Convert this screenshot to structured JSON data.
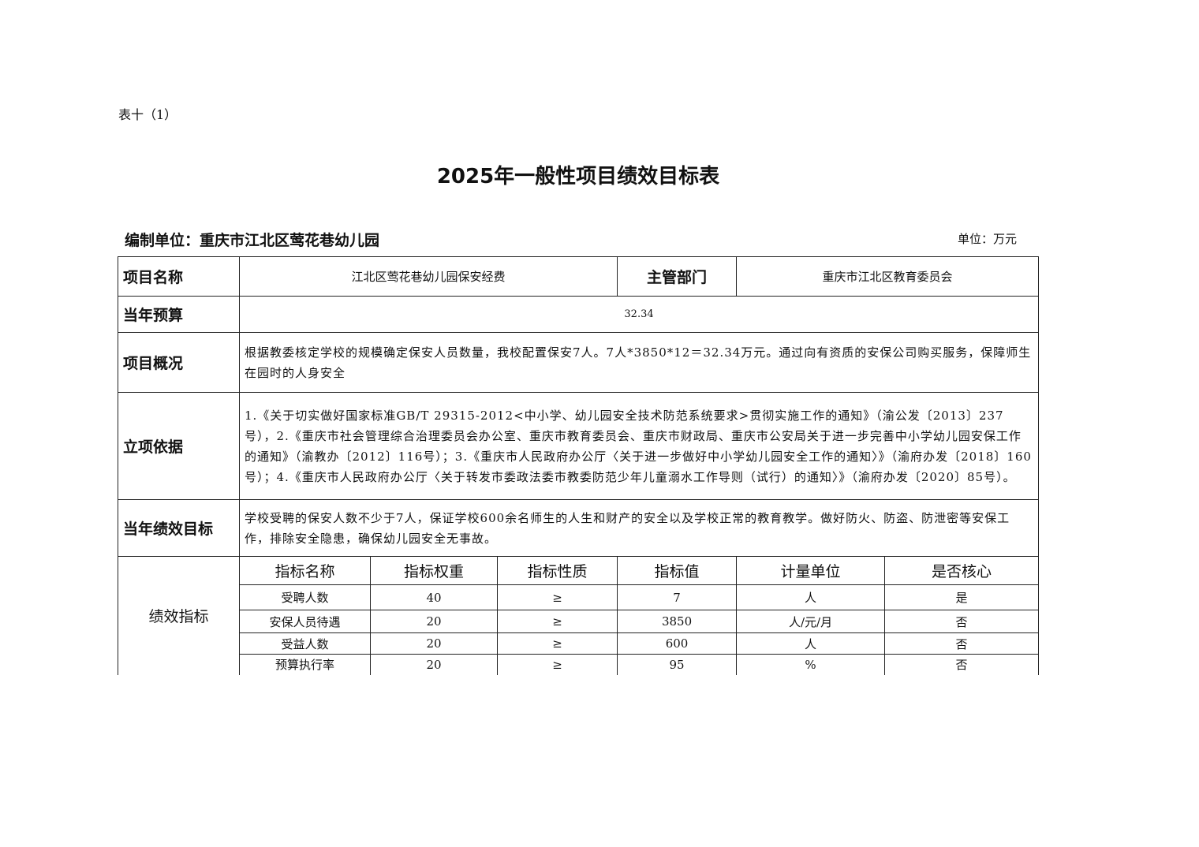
{
  "table_tag": "表十（1）",
  "title": "2025年一般性项目绩效目标表",
  "org": "编制单位：重庆市江北区莺花巷幼儿园",
  "unit": "单位：万元",
  "rows": {
    "name_label": "项目名称",
    "name_value": "江北区莺花巷幼儿园保安经费",
    "dept_label": "主管部门",
    "dept_value": "重庆市江北区教育委员会",
    "budget_label": "当年预算",
    "budget_value": "32.34",
    "overview_label": "项目概况",
    "overview_value": "根据教委核定学校的规模确定保安人员数量，我校配置保安7人。7人*3850*12＝32.34万元。通过向有资质的安保公司购买服务，保障师生在园时的人身安全",
    "basis_label": "立项依据",
    "basis_value": " 1.《关于切实做好国家标准GB/T 29315-2012<中小学、幼儿园安全技术防范系统要求>贯彻实施工作的通知》（渝公发〔2013〕237号），2.《重庆市社会管理综合治理委员会办公室、重庆市教育委员会、重庆市财政局、重庆市公安局关于进一步完善中小学幼儿园安保工作的通知》（渝教办〔2012〕116号）；3.《重庆市人民政府办公厅〈关于进一步做好中小学幼儿园安全工作的通知〉》（渝府办发〔2018〕160号）；4.《重庆市人民政府办公厅〈关于转发市委政法委市教委防范少年儿童溺水工作导则（试行）的通知〉》（渝府办发〔2020〕85号）。",
    "goal_label": "当年绩效目标",
    "goal_value": "学校受聘的保安人数不少于7人，保证学校600余名师生的人生和财产的安全以及学校正常的教育教学。做好防火、防盗、防泄密等安保工作，排除安全隐患，确保幼儿园安全无事故。",
    "indicator_label": "绩效指标"
  },
  "indicators": {
    "headers": [
      "指标名称",
      "指标权重",
      "指标性质",
      "指标值",
      "计量单位",
      "是否核心"
    ],
    "rows": [
      [
        "受聘人数",
        "40",
        "≥",
        "7",
        "人",
        "是"
      ],
      [
        "安保人员待遇",
        "20",
        "≥",
        "3850",
        "人/元/月",
        "否"
      ],
      [
        "受益人数",
        "20",
        "≥",
        "600",
        "人",
        "否"
      ],
      [
        "预算执行率",
        "20",
        "≥",
        "95",
        "%",
        "否"
      ]
    ]
  }
}
